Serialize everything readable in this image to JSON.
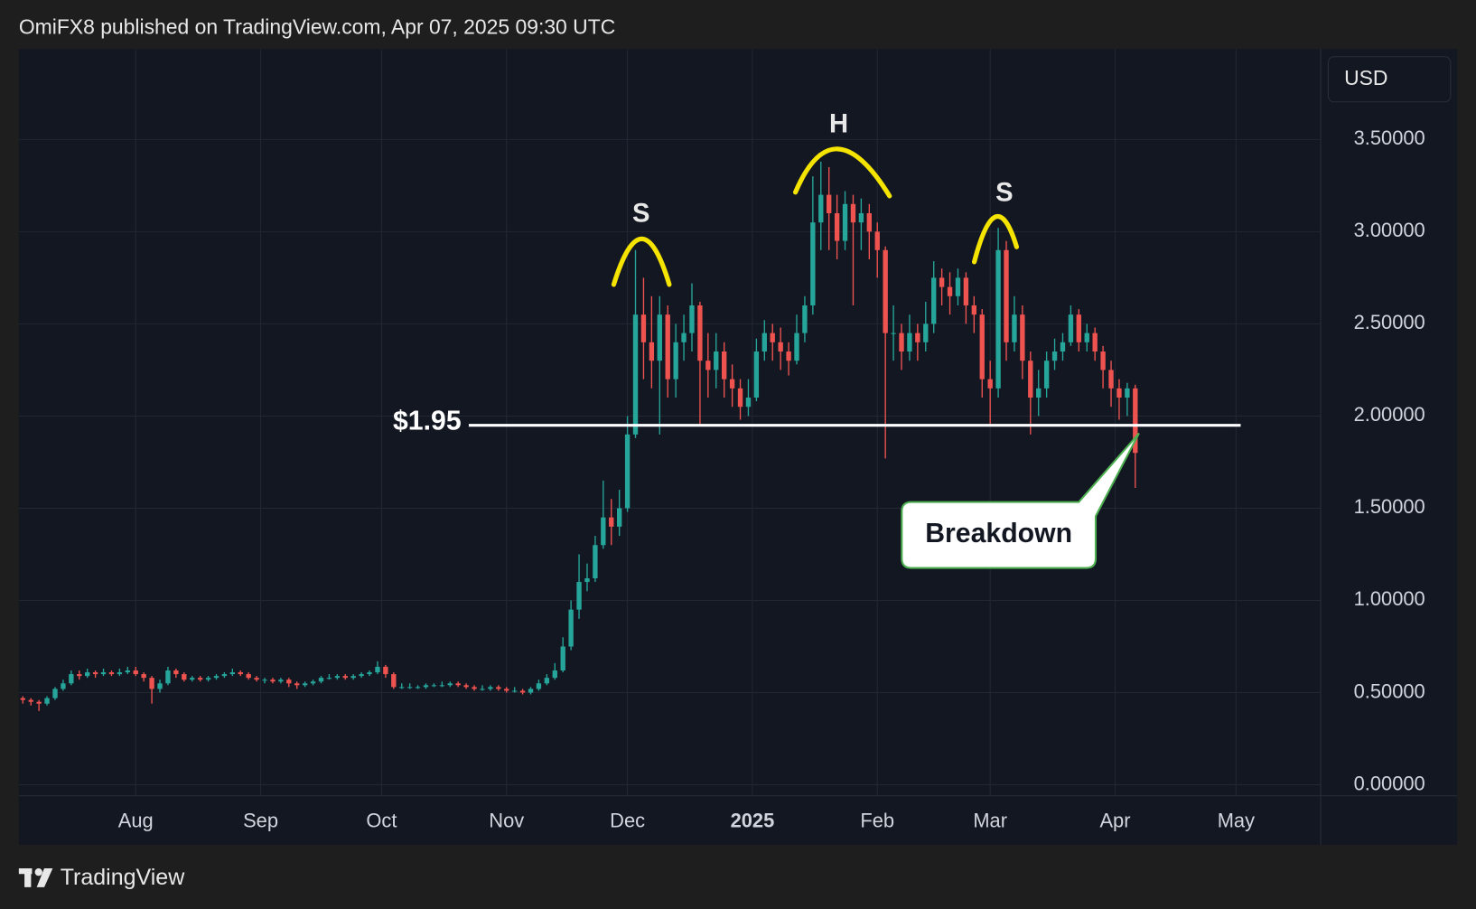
{
  "header": {
    "text": "OmiFX8 published on TradingView.com, Apr 07, 2025 09:30 UTC"
  },
  "footer": {
    "brand": "TradingView"
  },
  "currency_button": "USD",
  "chart_data": {
    "type": "candlestick",
    "x": [
      3,
      5,
      7,
      9,
      11,
      13,
      15,
      17,
      19,
      21,
      23,
      25,
      27,
      29,
      31,
      33,
      35,
      37,
      39,
      41,
      43,
      45,
      47,
      49,
      51,
      53,
      55,
      57,
      59,
      61,
      63,
      65,
      67,
      69,
      71,
      73,
      75,
      77,
      79,
      81,
      83,
      85,
      87,
      89,
      91,
      93,
      95,
      97,
      99,
      101,
      103,
      105,
      107,
      109,
      111,
      113,
      115,
      117,
      119,
      121,
      123,
      125,
      127,
      129,
      131,
      133,
      135,
      137,
      139,
      141,
      143,
      145,
      147,
      149,
      151,
      153,
      155,
      157,
      159,
      161,
      163,
      165,
      167,
      169,
      171,
      173,
      175,
      177,
      179,
      181,
      183,
      185,
      187,
      189,
      191,
      193,
      195,
      197,
      199,
      201,
      203,
      205,
      207,
      209,
      211,
      213,
      215,
      217,
      219,
      221,
      223,
      225,
      227,
      229,
      231,
      233,
      235,
      237,
      239,
      241,
      243,
      245,
      247,
      249,
      251,
      253,
      255,
      257,
      259,
      261,
      263,
      265,
      267,
      269,
      271,
      273,
      275,
      277,
      279
    ],
    "ohlc": [
      [
        0.47,
        0.48,
        0.44,
        0.46
      ],
      [
        0.46,
        0.47,
        0.43,
        0.45
      ],
      [
        0.45,
        0.46,
        0.4,
        0.44
      ],
      [
        0.44,
        0.48,
        0.43,
        0.47
      ],
      [
        0.47,
        0.53,
        0.46,
        0.52
      ],
      [
        0.52,
        0.57,
        0.51,
        0.55
      ],
      [
        0.55,
        0.62,
        0.54,
        0.6
      ],
      [
        0.6,
        0.62,
        0.57,
        0.59
      ],
      [
        0.59,
        0.63,
        0.58,
        0.61
      ],
      [
        0.61,
        0.62,
        0.58,
        0.6
      ],
      [
        0.6,
        0.63,
        0.59,
        0.61
      ],
      [
        0.61,
        0.62,
        0.59,
        0.6
      ],
      [
        0.6,
        0.63,
        0.59,
        0.61
      ],
      [
        0.61,
        0.64,
        0.6,
        0.62
      ],
      [
        0.62,
        0.64,
        0.59,
        0.6
      ],
      [
        0.6,
        0.61,
        0.56,
        0.58
      ],
      [
        0.58,
        0.59,
        0.44,
        0.52
      ],
      [
        0.52,
        0.57,
        0.5,
        0.55
      ],
      [
        0.55,
        0.64,
        0.54,
        0.62
      ],
      [
        0.62,
        0.63,
        0.58,
        0.6
      ],
      [
        0.6,
        0.61,
        0.56,
        0.57
      ],
      [
        0.57,
        0.59,
        0.56,
        0.58
      ],
      [
        0.58,
        0.59,
        0.56,
        0.57
      ],
      [
        0.57,
        0.59,
        0.56,
        0.58
      ],
      [
        0.58,
        0.6,
        0.57,
        0.59
      ],
      [
        0.59,
        0.61,
        0.58,
        0.6
      ],
      [
        0.6,
        0.63,
        0.59,
        0.61
      ],
      [
        0.61,
        0.62,
        0.59,
        0.6
      ],
      [
        0.6,
        0.61,
        0.57,
        0.58
      ],
      [
        0.58,
        0.59,
        0.56,
        0.57
      ],
      [
        0.57,
        0.58,
        0.55,
        0.57
      ],
      [
        0.57,
        0.58,
        0.55,
        0.56
      ],
      [
        0.56,
        0.58,
        0.55,
        0.57
      ],
      [
        0.57,
        0.58,
        0.53,
        0.55
      ],
      [
        0.55,
        0.56,
        0.52,
        0.54
      ],
      [
        0.54,
        0.56,
        0.53,
        0.55
      ],
      [
        0.55,
        0.57,
        0.54,
        0.56
      ],
      [
        0.56,
        0.59,
        0.55,
        0.58
      ],
      [
        0.58,
        0.6,
        0.57,
        0.58
      ],
      [
        0.58,
        0.6,
        0.57,
        0.59
      ],
      [
        0.59,
        0.6,
        0.57,
        0.58
      ],
      [
        0.58,
        0.6,
        0.57,
        0.59
      ],
      [
        0.59,
        0.61,
        0.58,
        0.6
      ],
      [
        0.6,
        0.62,
        0.59,
        0.61
      ],
      [
        0.61,
        0.67,
        0.6,
        0.64
      ],
      [
        0.64,
        0.65,
        0.58,
        0.6
      ],
      [
        0.6,
        0.61,
        0.52,
        0.53
      ],
      [
        0.53,
        0.55,
        0.52,
        0.53
      ],
      [
        0.53,
        0.55,
        0.52,
        0.53
      ],
      [
        0.53,
        0.54,
        0.52,
        0.53
      ],
      [
        0.53,
        0.55,
        0.52,
        0.54
      ],
      [
        0.54,
        0.55,
        0.53,
        0.54
      ],
      [
        0.54,
        0.56,
        0.53,
        0.54
      ],
      [
        0.54,
        0.56,
        0.53,
        0.55
      ],
      [
        0.55,
        0.56,
        0.53,
        0.54
      ],
      [
        0.54,
        0.55,
        0.52,
        0.53
      ],
      [
        0.53,
        0.54,
        0.51,
        0.52
      ],
      [
        0.52,
        0.54,
        0.51,
        0.52
      ],
      [
        0.52,
        0.54,
        0.51,
        0.53
      ],
      [
        0.53,
        0.54,
        0.51,
        0.52
      ],
      [
        0.52,
        0.53,
        0.5,
        0.51
      ],
      [
        0.51,
        0.53,
        0.5,
        0.51
      ],
      [
        0.51,
        0.52,
        0.49,
        0.5
      ],
      [
        0.5,
        0.53,
        0.49,
        0.52
      ],
      [
        0.52,
        0.57,
        0.51,
        0.55
      ],
      [
        0.55,
        0.6,
        0.54,
        0.58
      ],
      [
        0.58,
        0.66,
        0.57,
        0.62
      ],
      [
        0.62,
        0.8,
        0.61,
        0.75
      ],
      [
        0.75,
        1.0,
        0.73,
        0.95
      ],
      [
        0.95,
        1.25,
        0.9,
        1.1
      ],
      [
        1.1,
        1.2,
        1.05,
        1.12
      ],
      [
        1.12,
        1.35,
        1.1,
        1.3
      ],
      [
        1.3,
        1.65,
        1.28,
        1.45
      ],
      [
        1.45,
        1.55,
        1.3,
        1.4
      ],
      [
        1.4,
        1.6,
        1.35,
        1.5
      ],
      [
        1.5,
        2.0,
        1.48,
        1.9
      ],
      [
        1.9,
        2.9,
        1.88,
        2.55
      ],
      [
        2.55,
        2.75,
        2.2,
        2.4
      ],
      [
        2.4,
        2.65,
        2.15,
        2.3
      ],
      [
        2.3,
        2.65,
        1.9,
        2.55
      ],
      [
        2.55,
        2.6,
        2.1,
        2.2
      ],
      [
        2.2,
        2.5,
        2.1,
        2.4
      ],
      [
        2.4,
        2.55,
        2.3,
        2.45
      ],
      [
        2.45,
        2.72,
        2.35,
        2.6
      ],
      [
        2.6,
        2.62,
        1.95,
        2.3
      ],
      [
        2.3,
        2.45,
        2.1,
        2.25
      ],
      [
        2.25,
        2.45,
        2.15,
        2.35
      ],
      [
        2.35,
        2.4,
        2.1,
        2.2
      ],
      [
        2.2,
        2.28,
        2.05,
        2.15
      ],
      [
        2.15,
        2.2,
        1.98,
        2.05
      ],
      [
        2.05,
        2.2,
        2.0,
        2.1
      ],
      [
        2.1,
        2.42,
        2.08,
        2.35
      ],
      [
        2.35,
        2.52,
        2.3,
        2.45
      ],
      [
        2.45,
        2.5,
        2.3,
        2.4
      ],
      [
        2.4,
        2.48,
        2.25,
        2.35
      ],
      [
        2.35,
        2.4,
        2.22,
        2.3
      ],
      [
        2.3,
        2.55,
        2.28,
        2.45
      ],
      [
        2.45,
        2.65,
        2.4,
        2.6
      ],
      [
        2.6,
        3.3,
        2.55,
        3.05
      ],
      [
        3.05,
        3.38,
        2.9,
        3.2
      ],
      [
        3.2,
        3.35,
        2.9,
        3.1
      ],
      [
        3.1,
        3.2,
        2.85,
        2.95
      ],
      [
        2.95,
        3.22,
        2.9,
        3.15
      ],
      [
        3.15,
        3.2,
        2.6,
        3.05
      ],
      [
        3.05,
        3.18,
        2.9,
        3.1
      ],
      [
        3.1,
        3.15,
        2.85,
        3.0
      ],
      [
        3.0,
        3.05,
        2.75,
        2.9
      ],
      [
        2.9,
        2.92,
        1.77,
        2.45
      ],
      [
        2.45,
        2.6,
        2.3,
        2.45
      ],
      [
        2.45,
        2.5,
        2.25,
        2.35
      ],
      [
        2.35,
        2.55,
        2.3,
        2.45
      ],
      [
        2.45,
        2.5,
        2.3,
        2.4
      ],
      [
        2.4,
        2.62,
        2.35,
        2.5
      ],
      [
        2.5,
        2.84,
        2.45,
        2.75
      ],
      [
        2.75,
        2.8,
        2.6,
        2.7
      ],
      [
        2.7,
        2.78,
        2.55,
        2.65
      ],
      [
        2.65,
        2.8,
        2.6,
        2.75
      ],
      [
        2.75,
        2.78,
        2.5,
        2.6
      ],
      [
        2.6,
        2.65,
        2.45,
        2.55
      ],
      [
        2.55,
        2.58,
        2.1,
        2.2
      ],
      [
        2.2,
        2.3,
        1.95,
        2.15
      ],
      [
        2.15,
        3.02,
        2.1,
        2.9
      ],
      [
        2.9,
        2.95,
        2.3,
        2.4
      ],
      [
        2.4,
        2.65,
        2.35,
        2.55
      ],
      [
        2.55,
        2.6,
        2.2,
        2.3
      ],
      [
        2.3,
        2.35,
        1.9,
        2.1
      ],
      [
        2.1,
        2.25,
        2.0,
        2.15
      ],
      [
        2.15,
        2.35,
        2.1,
        2.3
      ],
      [
        2.3,
        2.42,
        2.25,
        2.35
      ],
      [
        2.35,
        2.45,
        2.3,
        2.4
      ],
      [
        2.4,
        2.6,
        2.38,
        2.55
      ],
      [
        2.55,
        2.58,
        2.35,
        2.4
      ],
      [
        2.4,
        2.5,
        2.35,
        2.45
      ],
      [
        2.45,
        2.48,
        2.3,
        2.35
      ],
      [
        2.35,
        2.38,
        2.15,
        2.25
      ],
      [
        2.25,
        2.3,
        2.05,
        2.15
      ],
      [
        2.15,
        2.2,
        1.98,
        2.1
      ],
      [
        2.1,
        2.18,
        2.0,
        2.15
      ],
      [
        2.15,
        2.17,
        1.61,
        1.8
      ]
    ],
    "up_color": "#26a69a",
    "down_color": "#ef5350",
    "xlim": [
      2,
      325
    ],
    "ylim": [
      -0.06,
      3.99
    ],
    "xticks": [
      {
        "value": 31,
        "label": "Aug"
      },
      {
        "value": 62,
        "label": "Sep"
      },
      {
        "value": 92,
        "label": "Oct"
      },
      {
        "value": 123,
        "label": "Nov"
      },
      {
        "value": 153,
        "label": "Dec"
      },
      {
        "value": 184,
        "label": "2025"
      },
      {
        "value": 215,
        "label": "Feb"
      },
      {
        "value": 243,
        "label": "Mar"
      },
      {
        "value": 274,
        "label": "Apr"
      },
      {
        "value": 304,
        "label": "May"
      }
    ],
    "yticks": [
      {
        "value": 0,
        "label": "0.00000"
      },
      {
        "value": 0.5,
        "label": "0.50000"
      },
      {
        "value": 1,
        "label": "1.00000"
      },
      {
        "value": 1.5,
        "label": "1.50000"
      },
      {
        "value": 2,
        "label": "2.00000"
      },
      {
        "value": 2.5,
        "label": "2.50000"
      },
      {
        "value": 3,
        "label": "3.00000"
      },
      {
        "value": 3.5,
        "label": "3.50000"
      }
    ],
    "grid": true,
    "level": {
      "value": 1.95,
      "label": "$1.95",
      "color": "#ffffff"
    },
    "annotations": [
      {
        "text": "S"
      },
      {
        "text": "H"
      },
      {
        "text": "S"
      },
      {
        "text": "Breakdown"
      }
    ]
  }
}
